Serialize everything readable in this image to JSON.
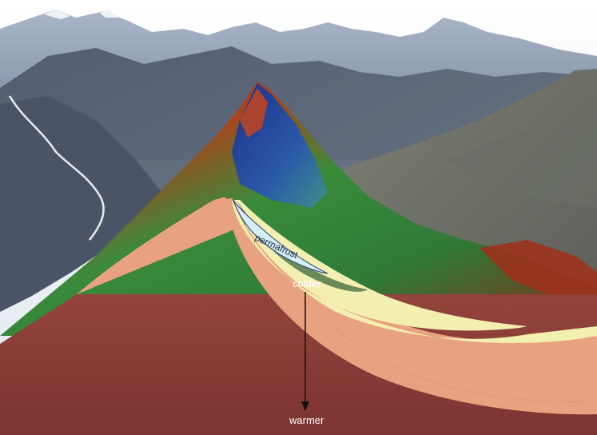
{
  "labels": {
    "permafrost": "permafrost",
    "colder": "colder",
    "warmer": "warmer"
  },
  "colors": {
    "sky": "#e9eef5",
    "far_mountains": "#8f9fb8",
    "mid_mountains": "#5d6b80",
    "valley": "#4a5466",
    "deep_layer": "#8e3e38",
    "mid_layer": "#e8a27f",
    "warm_layer": "#f3efb0",
    "cold_layer": "#6b8a5a",
    "permafrost_layer": "#d6eef5",
    "arrow": "#111111"
  }
}
